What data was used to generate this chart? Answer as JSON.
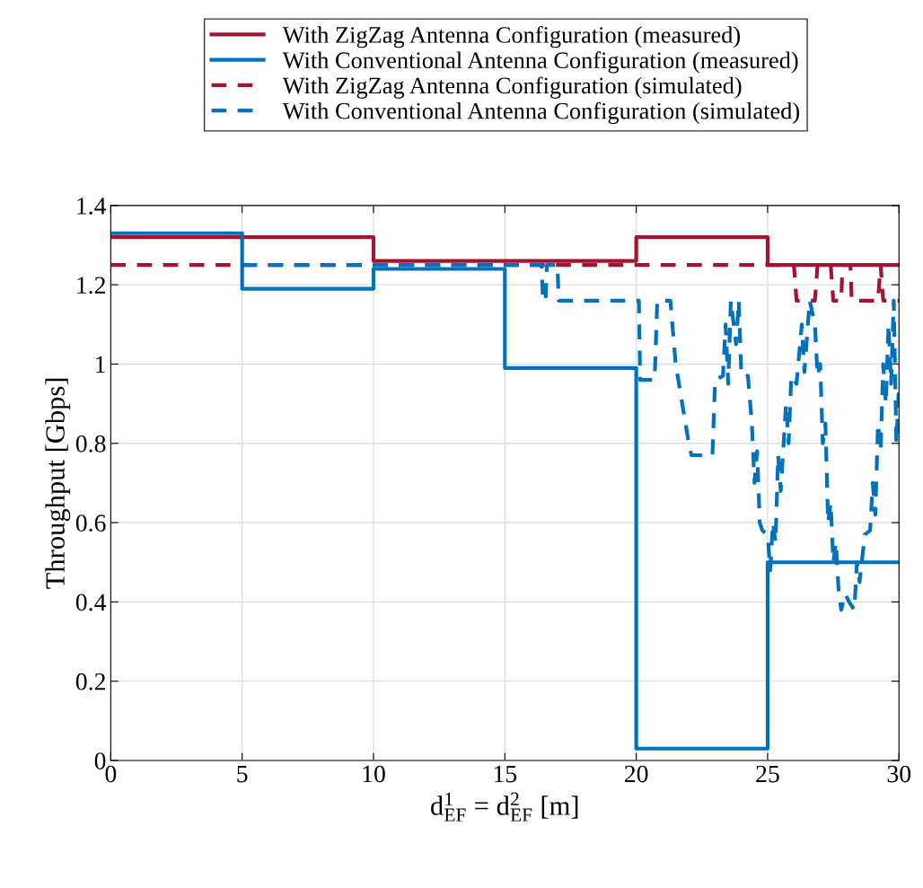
{
  "chart_data": {
    "type": "line",
    "xlabel": "d$^{1}$$_{EF}$ = d$^{2}$$_{EF}$ [m]",
    "ylabel": "Throughput [Gbps]",
    "xlim": [
      0,
      30
    ],
    "xticks": [
      0,
      5,
      10,
      15,
      20,
      25,
      30
    ],
    "ylim": [
      0,
      1.4
    ],
    "yticks": [
      0,
      0.2,
      0.4,
      0.6,
      0.8,
      1,
      1.2,
      1.4
    ],
    "grid": true,
    "legend": "top",
    "marker": "none",
    "series": [
      {
        "name": "With ZigZag Antenna Configuration (measured)",
        "type": "step",
        "color": "#a2142f",
        "line_style": "solid",
        "x": [
          0,
          5,
          10,
          15,
          20,
          25,
          30
        ],
        "values": [
          1.32,
          1.32,
          1.26,
          1.26,
          1.32,
          1.25,
          1.25
        ]
      },
      {
        "name": "With Conventional Antenna Configuration (measured)",
        "type": "step",
        "color": "#0072bd",
        "line_style": "solid",
        "x": [
          0,
          5,
          10,
          15,
          20,
          25,
          30
        ],
        "values": [
          1.33,
          1.19,
          1.24,
          0.99,
          0.03,
          0.5,
          0.5
        ]
      },
      {
        "name": "With ZigZag Antenna Configuration (simulated)",
        "color": "#a2142f",
        "line_style": "dashed",
        "x": [
          0,
          26.0,
          26.1,
          26.8,
          26.9,
          27.4,
          27.5,
          27.8,
          27.85,
          28.15,
          28.2,
          29.2,
          29.3,
          29.4,
          30
        ],
        "values": [
          1.25,
          1.25,
          1.16,
          1.16,
          1.25,
          1.25,
          1.16,
          1.16,
          1.25,
          1.25,
          1.16,
          1.16,
          1.25,
          1.16,
          1.16
        ]
      },
      {
        "name": "With Conventional Antenna Configuration (simulated)",
        "color": "#0072bd",
        "line_style": "dashed",
        "x": [
          5,
          16.4,
          16.45,
          16.55,
          16.6,
          17.0,
          17.05,
          20.1,
          20.15,
          20.7,
          20.8,
          21.3,
          21.5,
          21.6,
          22.0,
          22.1,
          22.9,
          23.0,
          23.3,
          23.4,
          23.5,
          23.6,
          23.8,
          23.9,
          24.0,
          24.25,
          24.4,
          24.5,
          24.6,
          24.7,
          24.8,
          25.0,
          25.1,
          25.2,
          25.3,
          25.4,
          25.5,
          25.7,
          25.8,
          25.9,
          26.1,
          26.3,
          26.4,
          26.6,
          26.8,
          26.9,
          27.0,
          27.1,
          27.2,
          27.3,
          27.4,
          27.5,
          27.6,
          27.7,
          27.8,
          27.95,
          28.1,
          28.3,
          28.4,
          28.5,
          28.7,
          28.9,
          29.0,
          29.1,
          29.2,
          29.3,
          29.4,
          29.5,
          29.6,
          29.7,
          29.8,
          29.9,
          30
        ],
        "values": [
          1.25,
          1.25,
          1.16,
          1.16,
          1.25,
          1.25,
          1.16,
          1.16,
          0.96,
          0.96,
          1.16,
          1.16,
          1.0,
          0.96,
          0.8,
          0.77,
          0.77,
          0.96,
          0.97,
          1.1,
          0.95,
          1.16,
          1.05,
          1.16,
          0.97,
          0.97,
          0.85,
          0.7,
          0.78,
          0.6,
          0.58,
          0.57,
          0.48,
          0.6,
          0.55,
          0.77,
          0.68,
          0.9,
          0.8,
          0.97,
          0.95,
          1.1,
          0.98,
          1.16,
          1.1,
          0.97,
          1.0,
          0.8,
          0.85,
          0.6,
          0.65,
          0.5,
          0.55,
          0.43,
          0.38,
          0.42,
          0.4,
          0.38,
          0.5,
          0.45,
          0.57,
          0.58,
          0.7,
          0.62,
          0.85,
          0.78,
          1.0,
          0.9,
          1.1,
          0.95,
          1.16,
          0.8,
          0.95
        ]
      }
    ]
  }
}
